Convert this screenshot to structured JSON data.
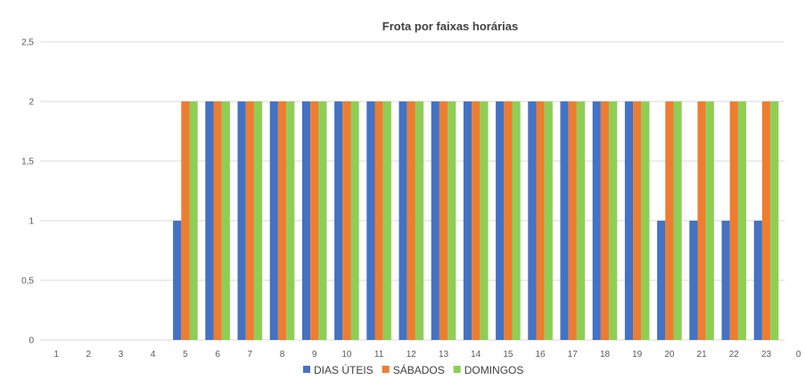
{
  "chart_data": {
    "type": "bar",
    "title": "Frota por faixas horárias",
    "xlabel": "",
    "ylabel": "",
    "categories": [
      "1",
      "2",
      "3",
      "4",
      "5",
      "6",
      "7",
      "8",
      "9",
      "10",
      "11",
      "12",
      "13",
      "14",
      "15",
      "16",
      "17",
      "18",
      "19",
      "20",
      "21",
      "22",
      "23",
      "0"
    ],
    "series": [
      {
        "name": "DIAS ÚTEIS",
        "color": "#4472c4",
        "values": [
          0,
          0,
          0,
          0,
          1,
          2,
          2,
          2,
          2,
          2,
          2,
          2,
          2,
          2,
          2,
          2,
          2,
          2,
          2,
          1,
          1,
          1,
          1,
          0
        ]
      },
      {
        "name": "SÁBADOS",
        "color": "#ed7d31",
        "values": [
          0,
          0,
          0,
          0,
          2,
          2,
          2,
          2,
          2,
          2,
          2,
          2,
          2,
          2,
          2,
          2,
          2,
          2,
          2,
          2,
          2,
          2,
          2,
          0
        ]
      },
      {
        "name": "DOMINGOS",
        "color": "#8fce55",
        "values": [
          0,
          0,
          0,
          0,
          2,
          2,
          2,
          2,
          2,
          2,
          2,
          2,
          2,
          2,
          2,
          2,
          2,
          2,
          2,
          2,
          2,
          2,
          2,
          0
        ]
      }
    ],
    "ylim": [
      0,
      2.5
    ],
    "yticks": [
      "0",
      "0,5",
      "1",
      "1,5",
      "2",
      "2,5"
    ],
    "grid": true,
    "legend_position": "bottom"
  }
}
